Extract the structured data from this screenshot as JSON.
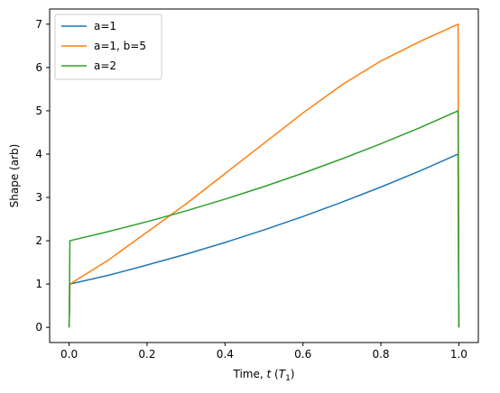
{
  "chart_data": {
    "type": "line",
    "xlabel": "Time, t (T1)",
    "xlabel_parts": {
      "prefix": "Time, ",
      "var": "t",
      "unit_open": " (",
      "unit_var": "T",
      "unit_sub": "1",
      "unit_close": ")"
    },
    "ylabel": "Shape (arb)",
    "xlim": [
      -0.05,
      1.05
    ],
    "ylim": [
      -0.35,
      7.35
    ],
    "xticks": [
      0.0,
      0.2,
      0.4,
      0.6,
      0.8,
      1.0
    ],
    "xtick_labels": [
      "0.0",
      "0.2",
      "0.4",
      "0.6",
      "0.8",
      "1.0"
    ],
    "yticks": [
      0,
      1,
      2,
      3,
      4,
      5,
      6,
      7
    ],
    "ytick_labels": [
      "0",
      "1",
      "2",
      "3",
      "4",
      "5",
      "6",
      "7"
    ],
    "grid": false,
    "legend_position": "top-left",
    "series": [
      {
        "name": "a=1",
        "color": "#1f77b4",
        "x": [
          0.0,
          0.002,
          0.1,
          0.2,
          0.3,
          0.4,
          0.5,
          0.6,
          0.7,
          0.8,
          0.9,
          0.998,
          1.0
        ],
        "y": [
          0.0,
          1.0,
          1.2,
          1.44,
          1.69,
          1.96,
          2.25,
          2.56,
          2.89,
          3.24,
          3.61,
          4.0,
          0.0
        ]
      },
      {
        "name": "a=1, b=5",
        "color": "#ff7f0e",
        "x": [
          0.0,
          0.002,
          0.1,
          0.2,
          0.3,
          0.4,
          0.5,
          0.6,
          0.7,
          0.8,
          0.9,
          0.998,
          1.0
        ],
        "y": [
          0.0,
          1.0,
          1.55,
          2.2,
          2.85,
          3.55,
          4.25,
          4.95,
          5.6,
          6.15,
          6.6,
          7.0,
          0.0
        ]
      },
      {
        "name": "a=2",
        "color": "#2ca02c",
        "x": [
          0.0,
          0.002,
          0.1,
          0.2,
          0.3,
          0.4,
          0.5,
          0.6,
          0.7,
          0.8,
          0.9,
          0.998,
          1.0
        ],
        "y": [
          0.0,
          2.0,
          2.21,
          2.44,
          2.69,
          2.96,
          3.25,
          3.56,
          3.89,
          4.24,
          4.61,
          5.0,
          0.0
        ]
      }
    ]
  }
}
